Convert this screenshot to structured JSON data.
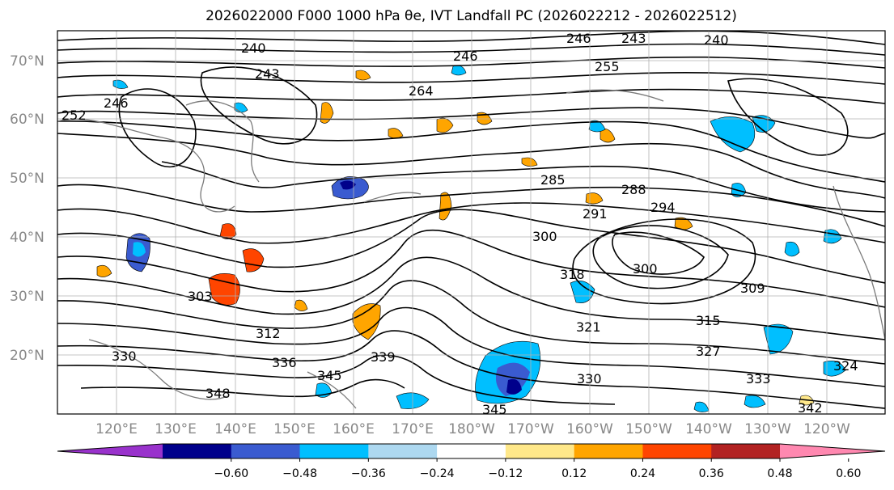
{
  "title": "2026022000 F000 1000 hPa θe, IVT Landfall PC (2026022212 - 2026022512)",
  "lat_labels": [
    "70°N",
    "60°N",
    "50°N",
    "40°N",
    "30°N",
    "20°N"
  ],
  "lon_labels": [
    "120°E",
    "130°E",
    "140°E",
    "150°E",
    "160°E",
    "170°E",
    "180°W",
    "170°W",
    "160°W",
    "150°W",
    "140°W",
    "130°W",
    "120°W"
  ],
  "colorbar": {
    "ticks": [
      "−0.60",
      "−0.48",
      "−0.36",
      "−0.24",
      "−0.12",
      "0.12",
      "0.24",
      "0.36",
      "0.48",
      "0.60"
    ],
    "colors": [
      "#9932cc",
      "#00008b",
      "#3a5bd0",
      "#00bfff",
      "#add8f0",
      "#ffffff",
      "#ffe88a",
      "#ffa500",
      "#ff4500",
      "#b22222",
      "#ff88b0"
    ]
  },
  "contour_labels": [
    "246",
    "243",
    "240",
    "246",
    "255",
    "240",
    "243",
    "246",
    "252",
    "264",
    "285",
    "288",
    "291",
    "294",
    "300",
    "300",
    "309",
    "303",
    "312",
    "315",
    "318",
    "321",
    "324",
    "327",
    "330",
    "333",
    "336",
    "339",
    "342",
    "345",
    "345",
    "348",
    "330"
  ]
}
